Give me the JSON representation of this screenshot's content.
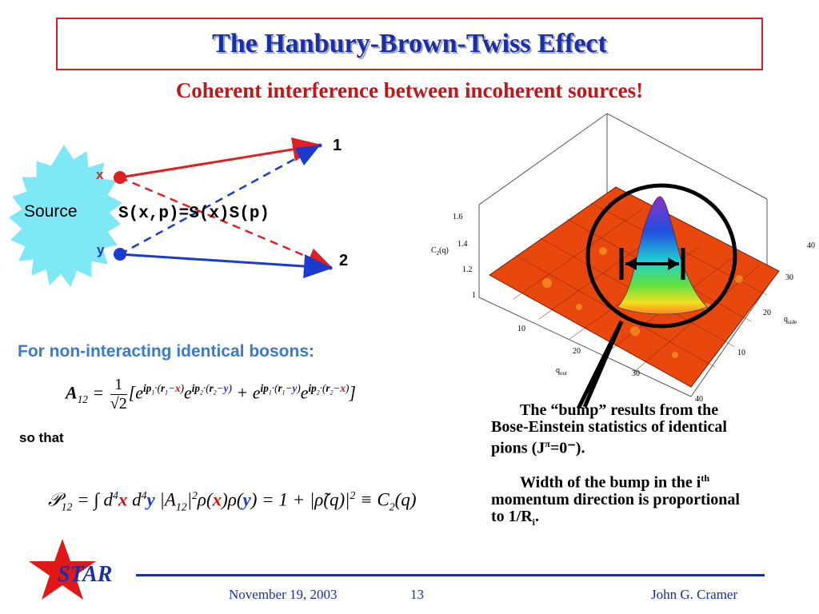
{
  "title": "The Hanbury-Brown-Twiss Effect",
  "subtitle": "Coherent interference between incoherent sources!",
  "diagram": {
    "source_label": "Source",
    "x_label": "x",
    "y_label": "y",
    "detector1_label": "1",
    "detector2_label": "2",
    "formula": "S(x,p)=S(x)S(p)"
  },
  "boson_heading": "For non-interacting identical bosons:",
  "so_that": "so that",
  "plot": {
    "zlabel": "C",
    "zlabel_sub": "2",
    "zlabel_arg": "(q)",
    "z_ticks": [
      "1",
      "1.2",
      "1.4",
      "1.6"
    ],
    "out_ticks": [
      "10",
      "20",
      "30",
      "40"
    ],
    "side_ticks": [
      "10",
      "20",
      "30",
      "40"
    ],
    "qout_label": "q",
    "qout_sub": "out",
    "qside_label": "q",
    "qside_sub": "side"
  },
  "description": {
    "bump_text_1": "The “bump” results from the Bose-Einstein statistics of identical pions (J",
    "bump_sup": "π",
    "bump_text_2": "=0⁻).",
    "width_text_1": "Width of the bump in the i",
    "width_sup": "th",
    "width_text_2": " momentum direction is proportional to 1/R",
    "width_sub": "i",
    "width_text_3": "."
  },
  "footer": {
    "logo": "STAR",
    "date": "November 19, 2003",
    "page": "13",
    "author": "John G. Cramer"
  },
  "colors": {
    "title": "#1a2ea8",
    "subtitle": "#c01818",
    "red_path": "#e02020",
    "blue_path": "#1a3ad0",
    "source_fill": "#7fe8f5",
    "star": "#e01818"
  }
}
